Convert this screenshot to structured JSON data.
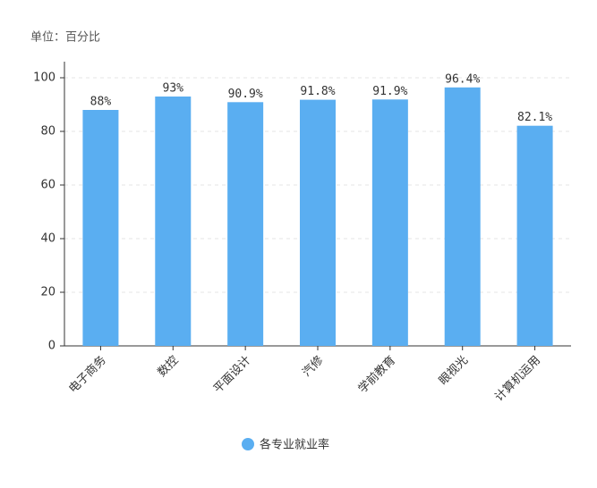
{
  "chart_data": {
    "type": "bar",
    "subtitle": "单位：百分比",
    "categories": [
      "电子商务",
      "数控",
      "平面设计",
      "汽修",
      "学前教育",
      "眼视光",
      "计算机运用"
    ],
    "series": [
      {
        "name": "各专业就业率",
        "color": "#5aaef1",
        "values": [
          88,
          93,
          90.9,
          91.8,
          91.9,
          96.4,
          82.1
        ],
        "value_labels": [
          "88%",
          "93%",
          "90.9%",
          "91.8%",
          "91.9%",
          "96.4%",
          "82.1%"
        ]
      }
    ],
    "ylim": [
      0,
      106
    ],
    "yticks": [
      0,
      20,
      40,
      60,
      80,
      100
    ],
    "grid": true,
    "legend": "bottom"
  }
}
